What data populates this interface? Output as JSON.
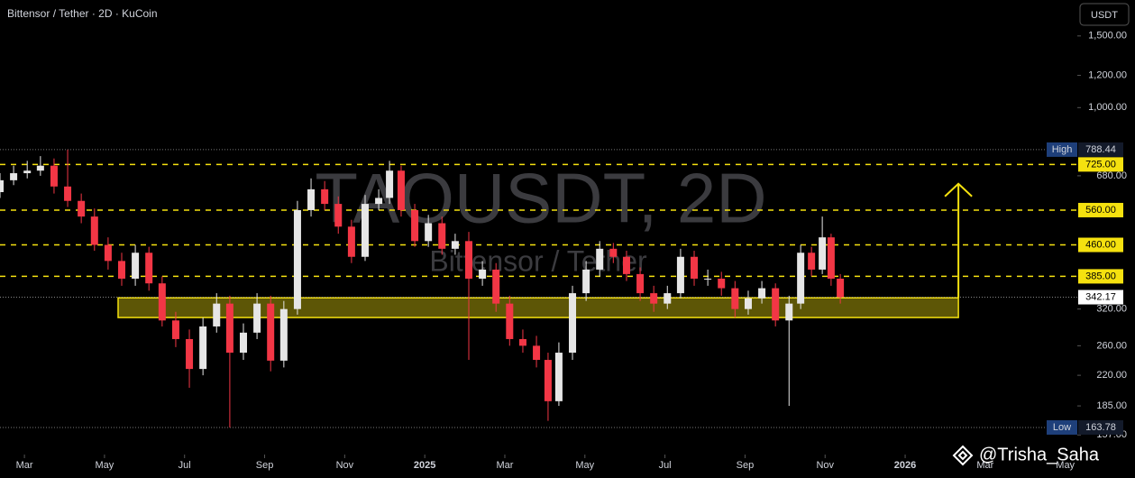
{
  "chart_data": {
    "type": "candlestick",
    "title": "Bittensor / Tether · 2D · KuCoin",
    "currency": "USDT",
    "watermark": "TAOUSDT, 2D",
    "watermark_subtitle": "Bittensor / Tether",
    "signature": "@Trisha_Saha",
    "log_scale": true,
    "grid": false,
    "up_color": "#e6e6e6",
    "down_color": "#f23645",
    "level_color": "#f5e10f",
    "xlim": [
      1.39,
      28.3
    ],
    "ylim": [
      143.4,
      1838
    ],
    "xticks": [
      {
        "value": 2,
        "label": "Mar"
      },
      {
        "value": 4,
        "label": "May"
      },
      {
        "value": 6,
        "label": "Jul"
      },
      {
        "value": 8,
        "label": "Sep"
      },
      {
        "value": 10,
        "label": "Nov"
      },
      {
        "value": 12,
        "label": "2025"
      },
      {
        "value": 14,
        "label": "Mar"
      },
      {
        "value": 16,
        "label": "May"
      },
      {
        "value": 18,
        "label": "Jul"
      },
      {
        "value": 20,
        "label": "Sep"
      },
      {
        "value": 22,
        "label": "Nov"
      },
      {
        "value": 24,
        "label": "2026"
      },
      {
        "value": 26,
        "label": "Mar"
      },
      {
        "value": 28,
        "label": "May"
      }
    ],
    "yticks": [
      {
        "value": 1500,
        "label": "1,500.00"
      },
      {
        "value": 1200,
        "label": "1,200.00"
      },
      {
        "value": 1000,
        "label": "1,000.00"
      },
      {
        "value": 680,
        "label": "680.00"
      },
      {
        "value": 320,
        "label": "320.00"
      },
      {
        "value": 260,
        "label": "260.00"
      },
      {
        "value": 220,
        "label": "220.00"
      },
      {
        "value": 185,
        "label": "185.00"
      },
      {
        "value": 157,
        "label": "157.00"
      }
    ],
    "levels": [
      {
        "value": 725,
        "label": "725.00"
      },
      {
        "value": 560,
        "label": "560.00"
      },
      {
        "value": 460,
        "label": "460.00"
      },
      {
        "value": 385,
        "label": "385.00"
      }
    ],
    "high": {
      "tag": "High",
      "value": 788.44,
      "label": "788.44"
    },
    "low": {
      "tag": "Low",
      "value": 163.78,
      "label": "163.78"
    },
    "last": {
      "value": 342.17,
      "label": "342.17"
    },
    "zone": {
      "low": 305,
      "high": 341,
      "x_start": 4.34,
      "x_end": 25.33
    },
    "arrow": {
      "x": 25.33,
      "from": 341,
      "to": 650
    },
    "candles": {
      "x": [
        1.39,
        1.73,
        2.07,
        2.4,
        2.74,
        3.08,
        3.42,
        3.75,
        4.09,
        4.43,
        4.77,
        5.11,
        5.44,
        5.78,
        6.12,
        6.46,
        6.8,
        7.13,
        7.47,
        7.81,
        8.15,
        8.48,
        8.82,
        9.16,
        9.5,
        9.84,
        10.17,
        10.51,
        10.85,
        11.12,
        11.41,
        11.75,
        12.09,
        12.43,
        12.76,
        13.1,
        13.44,
        13.78,
        14.12,
        14.45,
        14.79,
        15.08,
        15.35,
        15.69,
        16.03,
        16.37,
        16.71,
        17.04,
        17.38,
        17.72,
        18.06,
        18.39,
        18.73,
        19.07,
        19.41,
        19.75,
        20.08,
        20.42,
        20.76,
        21.1,
        21.39,
        21.66,
        21.93,
        22.15,
        22.38
      ],
      "open": [
        620,
        663,
        690,
        700,
        720,
        640,
        590,
        540,
        460,
        420,
        380,
        440,
        370,
        300,
        270,
        228,
        290,
        330,
        250,
        280,
        330,
        239,
        320,
        560,
        630,
        580,
        510,
        430,
        580,
        600,
        700,
        560,
        470,
        520,
        450,
        470,
        380,
        400,
        330,
        270,
        260,
        240,
        190,
        250,
        350,
        400,
        450,
        430,
        390,
        350,
        330,
        350,
        430,
        380,
        380,
        360,
        320,
        340,
        360,
        300,
        330,
        440,
        400,
        480,
        380
      ],
      "high": [
        690,
        720,
        740,
        760,
        750,
        788.44,
        615,
        565,
        480,
        440,
        460,
        455,
        385,
        315,
        285,
        305,
        350,
        345,
        295,
        350,
        345,
        335,
        590,
        670,
        660,
        605,
        530,
        610,
        630,
        740,
        720,
        580,
        545,
        540,
        490,
        495,
        420,
        415,
        345,
        285,
        275,
        250,
        265,
        365,
        420,
        470,
        465,
        445,
        405,
        365,
        365,
        450,
        445,
        400,
        395,
        375,
        355,
        375,
        370,
        345,
        460,
        455,
        540,
        490,
        390
      ],
      "low": [
        600,
        645,
        670,
        680,
        615,
        570,
        520,
        445,
        400,
        365,
        365,
        355,
        290,
        258,
        205,
        220,
        280,
        163.78,
        240,
        270,
        225,
        230,
        310,
        540,
        560,
        490,
        415,
        420,
        560,
        580,
        540,
        455,
        455,
        435,
        435,
        240,
        365,
        315,
        260,
        250,
        230,
        170,
        185,
        240,
        335,
        385,
        415,
        375,
        335,
        315,
        320,
        340,
        365,
        365,
        345,
        305,
        310,
        330,
        290,
        185,
        320,
        385,
        390,
        365,
        330
      ],
      "close": [
        663,
        690,
        700,
        720,
        640,
        590,
        540,
        460,
        420,
        380,
        440,
        370,
        300,
        270,
        228,
        290,
        330,
        250,
        280,
        330,
        239,
        320,
        560,
        630,
        580,
        510,
        430,
        580,
        600,
        700,
        560,
        470,
        520,
        450,
        470,
        380,
        400,
        330,
        270,
        260,
        240,
        190,
        250,
        350,
        400,
        450,
        430,
        390,
        350,
        330,
        350,
        430,
        380,
        380,
        360,
        320,
        340,
        360,
        300,
        330,
        440,
        400,
        480,
        380,
        342.17
      ]
    }
  }
}
